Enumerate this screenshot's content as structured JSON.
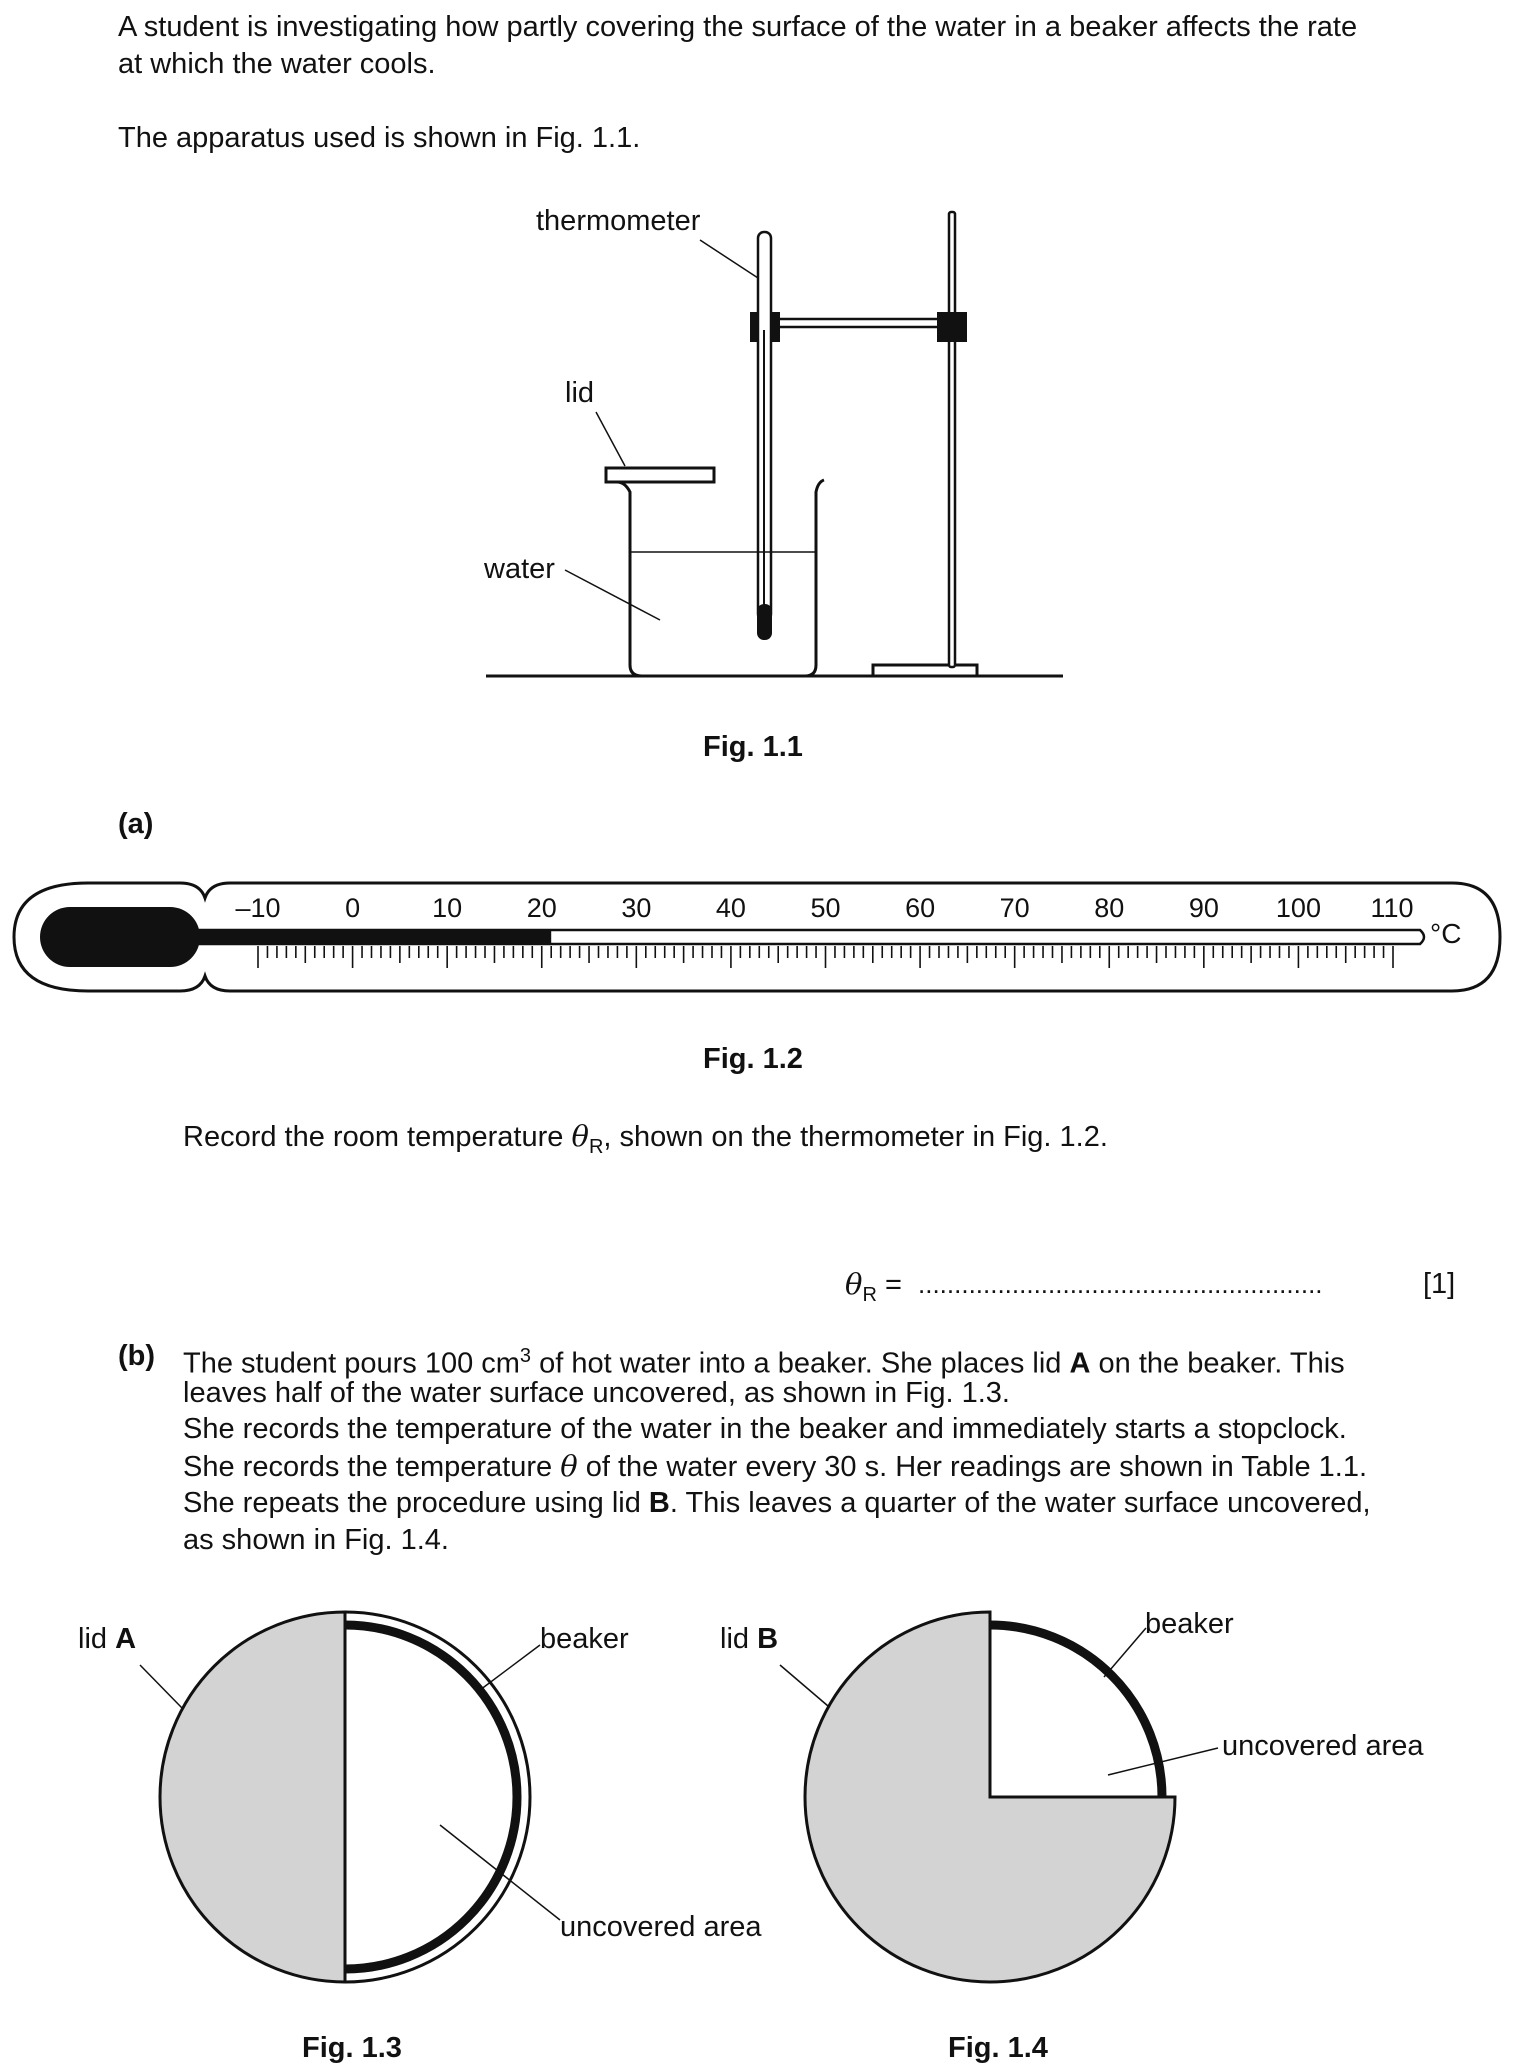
{
  "intro": {
    "line1": "A student is investigating how partly covering the surface of the water in a beaker affects the rate",
    "line2": "at which the water cools.",
    "line3": "The apparatus used is shown in Fig. 1.1."
  },
  "fig11": {
    "caption": "Fig. 1.1",
    "label_thermometer": "thermometer",
    "label_lid": "lid",
    "label_water": "water"
  },
  "part_a": {
    "marker": "(a)",
    "fig_caption": "Fig. 1.2",
    "question_pre": "Record the room temperature ",
    "symbol": "θ",
    "symbol_sub": "R",
    "question_post": ", shown on the thermometer in Fig. 1.2.",
    "answer_equals": " = ",
    "answer_dots": "........................................................",
    "marks": "[1]",
    "thermometer": {
      "unit": "°C",
      "ticks": [
        "–10",
        "0",
        "10",
        "20",
        "30",
        "40",
        "50",
        "60",
        "70",
        "80",
        "90",
        "100",
        "110"
      ],
      "reading": 21
    }
  },
  "part_b": {
    "marker": "(b)",
    "line1_pre": "The student pours 100 cm",
    "line1_sup": "3",
    "line1_mid": " of hot water into a beaker. She places lid ",
    "line1_bold": "A",
    "line1_post": " on the beaker. This",
    "line2": "leaves half of the water surface uncovered, as shown in Fig. 1.3.",
    "line3": "She records the temperature of the water in the beaker and immediately starts a stopclock.",
    "line4_pre": "She records the temperature ",
    "line4_sym": "θ",
    "line4_post": " of the water every 30 s. Her readings are shown in Table 1.1.",
    "line5_pre": "She repeats the procedure using lid ",
    "line5_bold": "B",
    "line5_post": ". This leaves a quarter of the water surface uncovered,",
    "line6": "as shown in Fig. 1.4."
  },
  "fig13": {
    "caption": "Fig. 1.3",
    "label_lid_pre": "lid ",
    "label_lid_bold": "A",
    "label_beaker": "beaker",
    "label_uncovered": "uncovered area"
  },
  "fig14": {
    "caption": "Fig. 1.4",
    "label_lid_pre": "lid ",
    "label_lid_bold": "B",
    "label_beaker": "beaker",
    "label_uncovered": "uncovered area"
  },
  "colors": {
    "lid_fill": "#d3d3d3",
    "ink": "#111111"
  }
}
